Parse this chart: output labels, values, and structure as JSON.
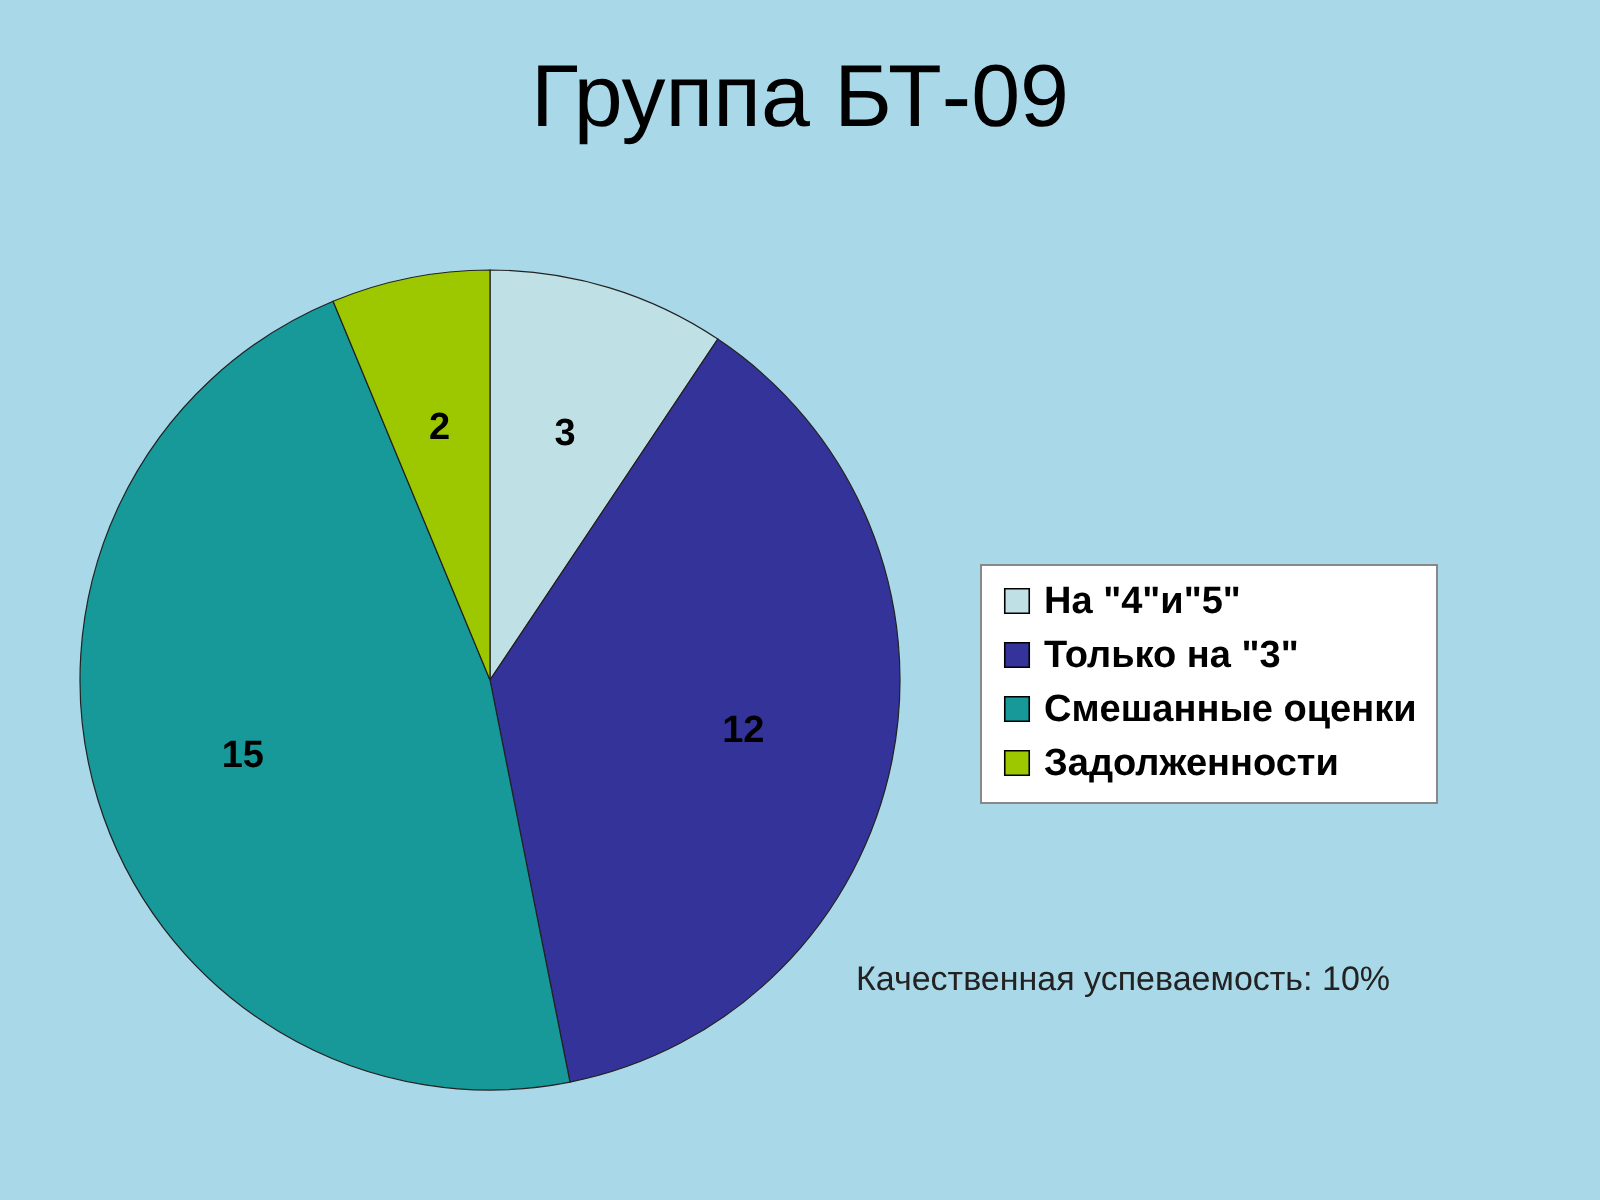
{
  "chart_data": {
    "type": "pie",
    "title": "Группа БТ-09",
    "categories": [
      "На \"4\"и\"5\"",
      "Только на \"3\"",
      "Смешанные оценки",
      "Задолженности"
    ],
    "values": [
      3,
      12,
      15,
      2
    ],
    "colors": [
      "#bfe1e5",
      "#333399",
      "#17999a",
      "#9dc800"
    ],
    "data_labels": true,
    "legend": "right",
    "annotations": [
      "Качественная успеваемость: 10%"
    ]
  }
}
